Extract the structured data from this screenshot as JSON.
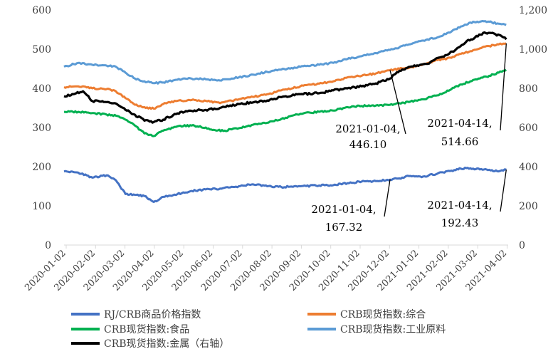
{
  "chart_data": {
    "type": "line",
    "title": "",
    "xlabel": "",
    "ylabel": "",
    "y_left_range": [
      0,
      600
    ],
    "y_right_range": [
      0,
      1200
    ],
    "y_left_ticks": [
      "0",
      "100",
      "200",
      "300",
      "400",
      "500",
      "600"
    ],
    "y_right_ticks": [
      "0",
      "200",
      "400",
      "600",
      "800",
      "1,000",
      "1,200"
    ],
    "x_tick_labels": [
      "2020-01-02",
      "2020-02-02",
      "2020-03-02",
      "2020-04-02",
      "2020-05-02",
      "2020-06-02",
      "2020-07-02",
      "2020-08-02",
      "2020-09-02",
      "2020-10-02",
      "2020-11-02",
      "2020-12-02",
      "2021-01-02",
      "2021-02-02",
      "2021-03-02",
      "2021-04-02"
    ],
    "x_range_days": [
      0,
      470
    ],
    "series": [
      {
        "name": "RJ/CRB商品价格指数",
        "color": "#4472C4",
        "axis": "left",
        "points": [
          [
            0,
            188
          ],
          [
            15,
            185
          ],
          [
            30,
            172
          ],
          [
            45,
            178
          ],
          [
            55,
            165
          ],
          [
            65,
            130
          ],
          [
            75,
            128
          ],
          [
            85,
            125
          ],
          [
            95,
            110
          ],
          [
            105,
            123
          ],
          [
            120,
            130
          ],
          [
            135,
            138
          ],
          [
            150,
            142
          ],
          [
            165,
            144
          ],
          [
            185,
            150
          ],
          [
            200,
            155
          ],
          [
            215,
            150
          ],
          [
            230,
            148
          ],
          [
            250,
            150
          ],
          [
            270,
            152
          ],
          [
            285,
            153
          ],
          [
            300,
            158
          ],
          [
            315,
            162
          ],
          [
            330,
            163
          ],
          [
            345,
            167
          ],
          [
            355,
            170
          ],
          [
            365,
            176
          ],
          [
            380,
            175
          ],
          [
            395,
            182
          ],
          [
            410,
            190
          ],
          [
            420,
            195
          ],
          [
            430,
            196
          ],
          [
            440,
            193
          ],
          [
            450,
            192
          ],
          [
            460,
            188
          ],
          [
            468,
            192.43
          ]
        ]
      },
      {
        "name": "CRB现货指数:综合",
        "color": "#ED7D31",
        "axis": "left",
        "points": [
          [
            0,
            403
          ],
          [
            15,
            405
          ],
          [
            30,
            400
          ],
          [
            45,
            398
          ],
          [
            55,
            392
          ],
          [
            65,
            375
          ],
          [
            75,
            358
          ],
          [
            85,
            352
          ],
          [
            95,
            348
          ],
          [
            105,
            360
          ],
          [
            120,
            368
          ],
          [
            135,
            370
          ],
          [
            150,
            368
          ],
          [
            165,
            362
          ],
          [
            185,
            372
          ],
          [
            200,
            378
          ],
          [
            215,
            385
          ],
          [
            230,
            395
          ],
          [
            250,
            405
          ],
          [
            270,
            412
          ],
          [
            285,
            418
          ],
          [
            300,
            428
          ],
          [
            315,
            432
          ],
          [
            330,
            438
          ],
          [
            345,
            446.1
          ],
          [
            355,
            450
          ],
          [
            365,
            452
          ],
          [
            380,
            462
          ],
          [
            395,
            472
          ],
          [
            410,
            478
          ],
          [
            420,
            488
          ],
          [
            430,
            495
          ],
          [
            440,
            502
          ],
          [
            450,
            508
          ],
          [
            460,
            512
          ],
          [
            468,
            514.66
          ]
        ]
      },
      {
        "name": "CRB现货指数:食品",
        "color": "#00B050",
        "axis": "left",
        "points": [
          [
            0,
            340
          ],
          [
            15,
            340
          ],
          [
            30,
            337
          ],
          [
            45,
            333
          ],
          [
            55,
            330
          ],
          [
            65,
            320
          ],
          [
            75,
            305
          ],
          [
            85,
            285
          ],
          [
            95,
            278
          ],
          [
            105,
            292
          ],
          [
            120,
            303
          ],
          [
            135,
            305
          ],
          [
            150,
            300
          ],
          [
            160,
            293
          ],
          [
            170,
            292
          ],
          [
            185,
            298
          ],
          [
            200,
            307
          ],
          [
            215,
            312
          ],
          [
            230,
            322
          ],
          [
            250,
            335
          ],
          [
            270,
            340
          ],
          [
            285,
            343
          ],
          [
            300,
            352
          ],
          [
            315,
            355
          ],
          [
            330,
            356
          ],
          [
            345,
            358
          ],
          [
            355,
            362
          ],
          [
            365,
            365
          ],
          [
            380,
            372
          ],
          [
            395,
            382
          ],
          [
            410,
            398
          ],
          [
            420,
            410
          ],
          [
            430,
            418
          ],
          [
            440,
            425
          ],
          [
            450,
            432
          ],
          [
            460,
            440
          ],
          [
            468,
            447
          ]
        ]
      },
      {
        "name": "CRB现货指数:工业原料",
        "color": "#5B9BD5",
        "axis": "left",
        "points": [
          [
            0,
            455
          ],
          [
            15,
            465
          ],
          [
            30,
            460
          ],
          [
            45,
            458
          ],
          [
            55,
            455
          ],
          [
            65,
            440
          ],
          [
            75,
            425
          ],
          [
            85,
            418
          ],
          [
            95,
            413
          ],
          [
            105,
            415
          ],
          [
            120,
            422
          ],
          [
            135,
            425
          ],
          [
            150,
            423
          ],
          [
            165,
            420
          ],
          [
            185,
            428
          ],
          [
            200,
            435
          ],
          [
            215,
            442
          ],
          [
            230,
            448
          ],
          [
            250,
            455
          ],
          [
            270,
            460
          ],
          [
            285,
            465
          ],
          [
            300,
            475
          ],
          [
            315,
            482
          ],
          [
            330,
            490
          ],
          [
            345,
            498
          ],
          [
            355,
            505
          ],
          [
            365,
            512
          ],
          [
            380,
            522
          ],
          [
            395,
            530
          ],
          [
            410,
            545
          ],
          [
            420,
            558
          ],
          [
            430,
            568
          ],
          [
            440,
            570
          ],
          [
            450,
            570
          ],
          [
            460,
            565
          ],
          [
            468,
            562
          ]
        ]
      },
      {
        "name": "CRB现货指数:金属（右轴）",
        "color": "#000000",
        "axis": "right",
        "points": [
          [
            0,
            760
          ],
          [
            10,
            770
          ],
          [
            20,
            785
          ],
          [
            30,
            735
          ],
          [
            45,
            730
          ],
          [
            55,
            722
          ],
          [
            65,
            690
          ],
          [
            75,
            665
          ],
          [
            85,
            635
          ],
          [
            95,
            628
          ],
          [
            105,
            640
          ],
          [
            120,
            672
          ],
          [
            135,
            685
          ],
          [
            150,
            690
          ],
          [
            165,
            700
          ],
          [
            185,
            720
          ],
          [
            200,
            728
          ],
          [
            215,
            738
          ],
          [
            230,
            755
          ],
          [
            250,
            770
          ],
          [
            270,
            775
          ],
          [
            285,
            790
          ],
          [
            300,
            800
          ],
          [
            315,
            810
          ],
          [
            330,
            825
          ],
          [
            345,
            850
          ],
          [
            355,
            890
          ],
          [
            365,
            910
          ],
          [
            375,
            915
          ],
          [
            385,
            925
          ],
          [
            395,
            955
          ],
          [
            405,
            970
          ],
          [
            415,
            1000
          ],
          [
            425,
            1035
          ],
          [
            435,
            1060
          ],
          [
            445,
            1085
          ],
          [
            455,
            1080
          ],
          [
            465,
            1060
          ],
          [
            468,
            1050
          ]
        ]
      }
    ],
    "annotations": [
      {
        "label": "2021-01-04,",
        "value_text": "446.10",
        "x": 345,
        "value": 446.1,
        "axis": "left"
      },
      {
        "label": "2021-04-14,",
        "value_text": "514.66",
        "x": 468,
        "value": 514.66,
        "axis": "left"
      },
      {
        "label": "2021-01-04,",
        "value_text": "167.32",
        "x": 345,
        "value": 167.32,
        "axis": "left"
      },
      {
        "label": "2021-04-14,",
        "value_text": "192.43",
        "x": 468,
        "value": 192.43,
        "axis": "left"
      }
    ],
    "legend_position": "bottom"
  }
}
